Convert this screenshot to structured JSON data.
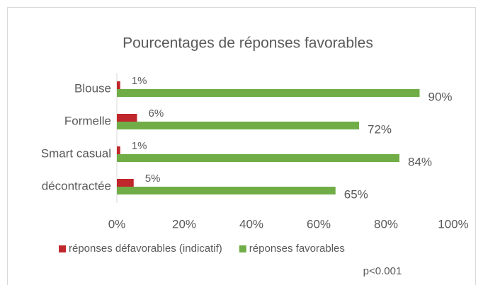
{
  "chart_data": {
    "type": "hbar",
    "title": "Pourcentages de réponses favorables",
    "categories": [
      "Blouse",
      "Formelle",
      "Smart casual",
      "décontractée"
    ],
    "series": [
      {
        "name": "réponses défavorables (indicatif)",
        "color": "#c0272d",
        "values": [
          1,
          6,
          1,
          5
        ],
        "value_labels": [
          "1%",
          "6%",
          "1%",
          "5%"
        ]
      },
      {
        "name": "réponses favorables",
        "color": "#70ad47",
        "values": [
          90,
          72,
          84,
          65
        ],
        "value_labels": [
          "90%",
          "72%",
          "84%",
          "65%"
        ]
      }
    ],
    "xlim": [
      0,
      100
    ],
    "xticks": [
      {
        "value": 0,
        "label": "0%"
      },
      {
        "value": 20,
        "label": "20%"
      },
      {
        "value": 40,
        "label": "40%"
      },
      {
        "value": 60,
        "label": "60%"
      },
      {
        "value": 80,
        "label": "80%"
      },
      {
        "value": 100,
        "label": "100%"
      }
    ],
    "legend": "bottom",
    "annotation": "p<0.001"
  }
}
